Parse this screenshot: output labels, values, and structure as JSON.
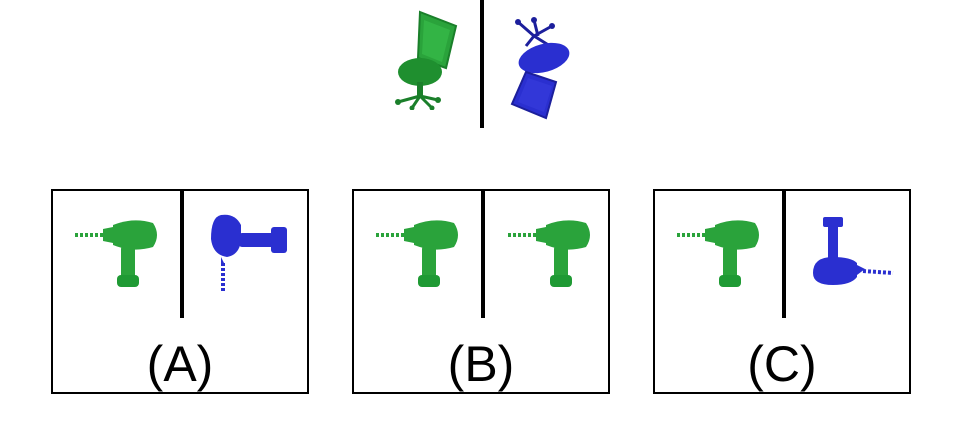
{
  "colors": {
    "green": "#2aa33b",
    "green_dark": "#1a7f2a",
    "blue": "#2a2fd0",
    "blue_dark": "#1c1f9c",
    "line": "#000000"
  },
  "example": {
    "left_icon": "green-office-chair-icon",
    "right_icon": "blue-office-chair-icon"
  },
  "options": [
    {
      "label": "(A)",
      "left_icon": "green-drill-icon",
      "right_icon": "blue-drill-vertical-icon"
    },
    {
      "label": "(B)",
      "left_icon": "green-drill-icon",
      "right_icon": "green-drill-icon"
    },
    {
      "label": "(C)",
      "left_icon": "green-drill-icon",
      "right_icon": "blue-drill-horizontal-icon"
    }
  ]
}
